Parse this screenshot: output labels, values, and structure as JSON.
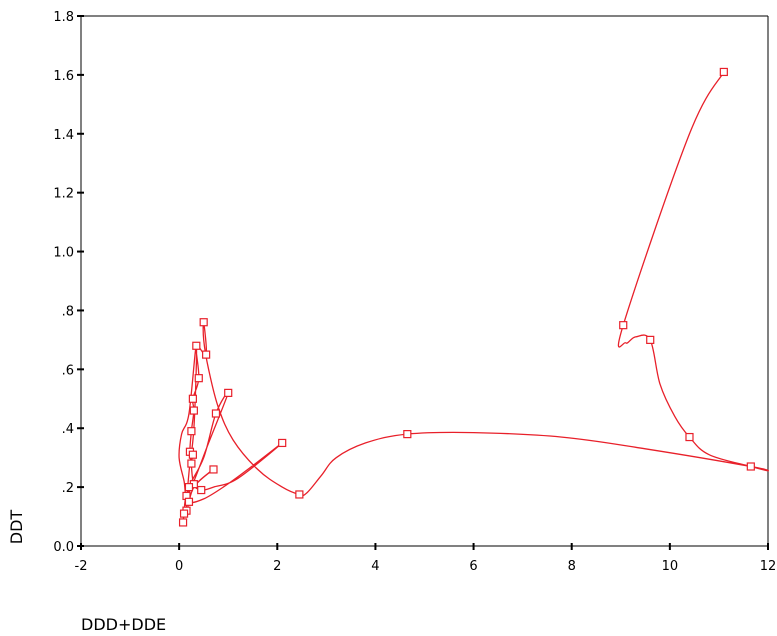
{
  "chart_data": {
    "type": "scatter",
    "xlabel": "DDD+DDE",
    "ylabel": "DDT",
    "xlim": [
      -2,
      12
    ],
    "ylim": [
      0.0,
      1.8
    ],
    "x_ticks": [
      -2,
      0,
      2,
      4,
      6,
      8,
      10,
      12
    ],
    "x_tick_labels": [
      "-2",
      "0",
      "2",
      "4",
      "6",
      "8",
      "10",
      "12"
    ],
    "y_ticks": [
      0.0,
      0.2,
      0.4,
      0.6,
      0.8,
      1.0,
      1.2,
      1.4,
      1.6,
      1.8
    ],
    "y_tick_labels": [
      "0.0",
      ".2",
      ".4",
      ".6",
      ".8",
      "1.0",
      "1.2",
      "1.4",
      "1.6",
      "1.8"
    ],
    "grid": false,
    "color": "#e8202a",
    "marker": "open-square",
    "connected_by": "smoothed-line",
    "points": [
      {
        "x": 11.1,
        "y": 1.61
      },
      {
        "x": 9.05,
        "y": 0.75
      },
      {
        "x": 9.6,
        "y": 0.7
      },
      {
        "x": 10.4,
        "y": 0.37
      },
      {
        "x": 11.65,
        "y": 0.27
      },
      {
        "x": 4.65,
        "y": 0.38
      },
      {
        "x": 2.45,
        "y": 0.175
      },
      {
        "x": 2.1,
        "y": 0.35
      },
      {
        "x": 1.0,
        "y": 0.52
      },
      {
        "x": 0.75,
        "y": 0.45
      },
      {
        "x": 0.7,
        "y": 0.26
      },
      {
        "x": 0.5,
        "y": 0.76
      },
      {
        "x": 0.55,
        "y": 0.65
      },
      {
        "x": 0.35,
        "y": 0.68
      },
      {
        "x": 0.4,
        "y": 0.57
      },
      {
        "x": 0.28,
        "y": 0.5
      },
      {
        "x": 0.3,
        "y": 0.46
      },
      {
        "x": 0.25,
        "y": 0.39
      },
      {
        "x": 0.22,
        "y": 0.32
      },
      {
        "x": 0.28,
        "y": 0.31
      },
      {
        "x": 0.25,
        "y": 0.28
      },
      {
        "x": 0.3,
        "y": 0.21
      },
      {
        "x": 0.45,
        "y": 0.19
      },
      {
        "x": 0.2,
        "y": 0.2
      },
      {
        "x": 0.15,
        "y": 0.17
      },
      {
        "x": 0.2,
        "y": 0.15
      },
      {
        "x": 0.15,
        "y": 0.12
      },
      {
        "x": 0.1,
        "y": 0.11
      },
      {
        "x": 0.08,
        "y": 0.08
      }
    ],
    "line_path": [
      {
        "x": 11.1,
        "y": 1.61
      },
      {
        "x": 10.4,
        "y": 1.4
      },
      {
        "x": 9.05,
        "y": 0.75
      },
      {
        "x": 9.1,
        "y": 0.69
      },
      {
        "x": 9.3,
        "y": 0.71
      },
      {
        "x": 9.6,
        "y": 0.7
      },
      {
        "x": 9.8,
        "y": 0.55
      },
      {
        "x": 10.1,
        "y": 0.44
      },
      {
        "x": 10.4,
        "y": 0.37
      },
      {
        "x": 10.8,
        "y": 0.31
      },
      {
        "x": 11.65,
        "y": 0.27
      },
      {
        "x": 12.0,
        "y": 0.255
      },
      {
        "x": 11.65,
        "y": 0.27
      },
      {
        "x": 9.5,
        "y": 0.33
      },
      {
        "x": 7.8,
        "y": 0.37
      },
      {
        "x": 6.0,
        "y": 0.385
      },
      {
        "x": 4.65,
        "y": 0.38
      },
      {
        "x": 3.8,
        "y": 0.35
      },
      {
        "x": 3.2,
        "y": 0.3
      },
      {
        "x": 2.9,
        "y": 0.24
      },
      {
        "x": 2.6,
        "y": 0.18
      },
      {
        "x": 2.45,
        "y": 0.175
      },
      {
        "x": 2.1,
        "y": 0.2
      },
      {
        "x": 1.6,
        "y": 0.26
      },
      {
        "x": 1.1,
        "y": 0.36
      },
      {
        "x": 0.8,
        "y": 0.47
      },
      {
        "x": 0.6,
        "y": 0.6
      },
      {
        "x": 0.5,
        "y": 0.7
      },
      {
        "x": 0.5,
        "y": 0.76
      },
      {
        "x": 0.55,
        "y": 0.65
      },
      {
        "x": 0.35,
        "y": 0.68
      },
      {
        "x": 0.4,
        "y": 0.57
      },
      {
        "x": 0.28,
        "y": 0.5
      },
      {
        "x": 0.3,
        "y": 0.46
      },
      {
        "x": 0.25,
        "y": 0.39
      },
      {
        "x": 0.22,
        "y": 0.32
      },
      {
        "x": 0.28,
        "y": 0.31
      },
      {
        "x": 0.25,
        "y": 0.28
      },
      {
        "x": 0.3,
        "y": 0.21
      },
      {
        "x": 0.45,
        "y": 0.19
      },
      {
        "x": 0.7,
        "y": 0.2
      },
      {
        "x": 1.2,
        "y": 0.23
      },
      {
        "x": 2.1,
        "y": 0.35
      },
      {
        "x": 1.4,
        "y": 0.26
      },
      {
        "x": 0.9,
        "y": 0.2
      },
      {
        "x": 0.5,
        "y": 0.16
      },
      {
        "x": 0.2,
        "y": 0.15
      },
      {
        "x": 0.2,
        "y": 0.2
      },
      {
        "x": 0.5,
        "y": 0.3
      },
      {
        "x": 0.75,
        "y": 0.45
      },
      {
        "x": 1.0,
        "y": 0.52
      },
      {
        "x": 0.6,
        "y": 0.35
      },
      {
        "x": 0.3,
        "y": 0.22
      },
      {
        "x": 0.15,
        "y": 0.17
      },
      {
        "x": 0.1,
        "y": 0.22
      },
      {
        "x": 0.0,
        "y": 0.3
      },
      {
        "x": 0.05,
        "y": 0.38
      },
      {
        "x": 0.2,
        "y": 0.45
      },
      {
        "x": 0.35,
        "y": 0.68
      },
      {
        "x": 0.3,
        "y": 0.4
      },
      {
        "x": 0.2,
        "y": 0.25
      },
      {
        "x": 0.15,
        "y": 0.12
      },
      {
        "x": 0.3,
        "y": 0.2
      },
      {
        "x": 0.7,
        "y": 0.26
      },
      {
        "x": 0.4,
        "y": 0.22
      },
      {
        "x": 0.15,
        "y": 0.17
      },
      {
        "x": 0.1,
        "y": 0.11
      },
      {
        "x": 0.08,
        "y": 0.08
      }
    ]
  }
}
